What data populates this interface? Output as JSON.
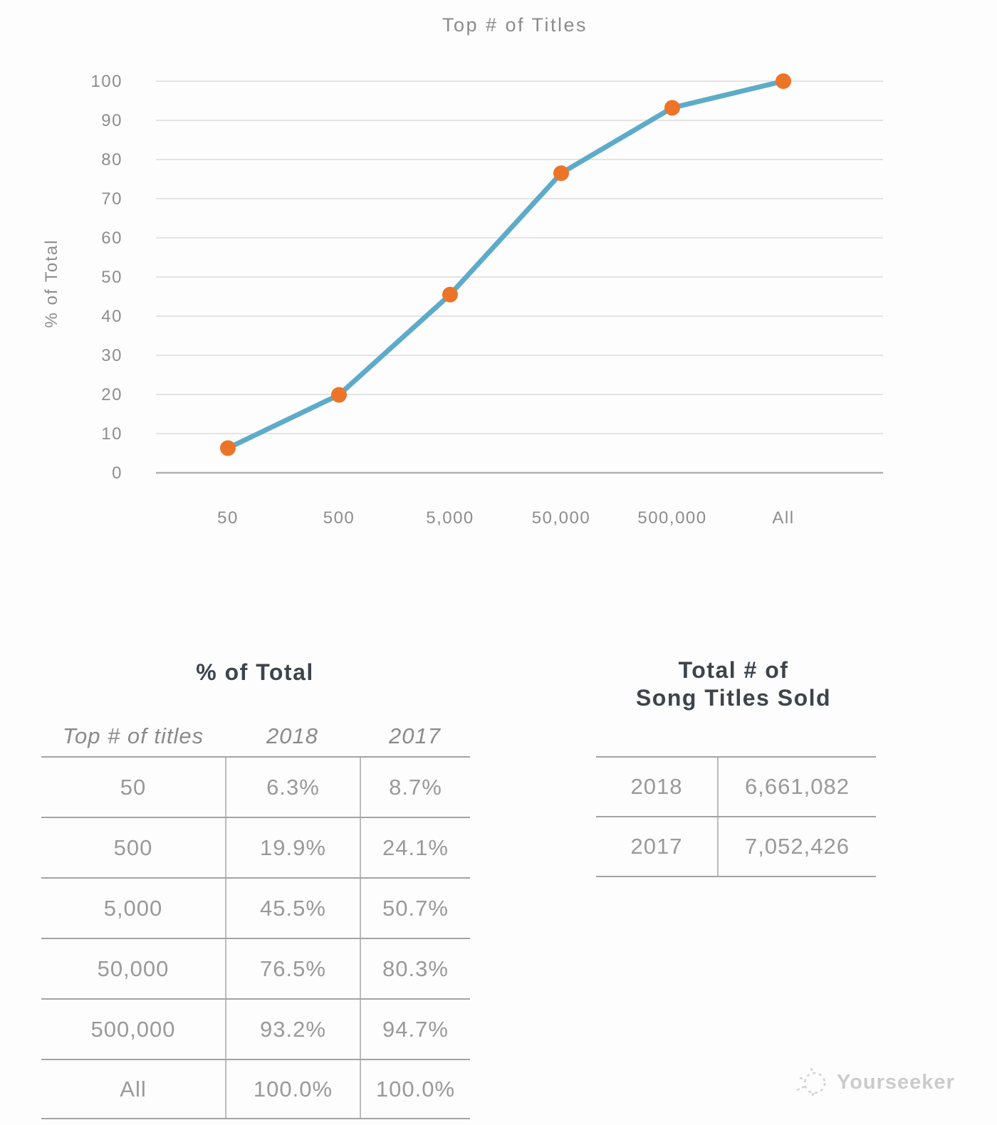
{
  "chart": {
    "title": "Top # of Titles",
    "y_axis_label": "% of Total"
  },
  "chart_data": {
    "type": "line",
    "title": "Top # of Titles",
    "xlabel": "",
    "ylabel": "% of Total",
    "categories": [
      "50",
      "500",
      "5,000",
      "50,000",
      "500,000",
      "All"
    ],
    "series": [
      {
        "name": "2018",
        "values": [
          6.3,
          19.9,
          45.5,
          76.5,
          93.2,
          100.0
        ]
      }
    ],
    "ylim": [
      0,
      100
    ],
    "ytick_step": 10,
    "grid": true,
    "legend_position": "none",
    "line_color": "#5dabc9",
    "marker_color": "#ec7428",
    "gridline_color": "#dcdcdc",
    "baseline_color": "#b0b0b0"
  },
  "left_table": {
    "title": "% of Total",
    "headers": [
      "Top # of titles",
      "2018",
      "2017"
    ],
    "rows": [
      [
        "50",
        "6.3%",
        "8.7%"
      ],
      [
        "500",
        "19.9%",
        "24.1%"
      ],
      [
        "5,000",
        "45.5%",
        "50.7%"
      ],
      [
        "50,000",
        "76.5%",
        "80.3%"
      ],
      [
        "500,000",
        "93.2%",
        "94.7%"
      ],
      [
        "All",
        "100.0%",
        "100.0%"
      ]
    ]
  },
  "right_table": {
    "title_line1": "Total # of",
    "title_line2": "Song Titles Sold",
    "rows": [
      [
        "2018",
        "6,661,082"
      ],
      [
        "2017",
        "7,052,426"
      ]
    ]
  },
  "watermark": {
    "text": "Yourseeker"
  }
}
